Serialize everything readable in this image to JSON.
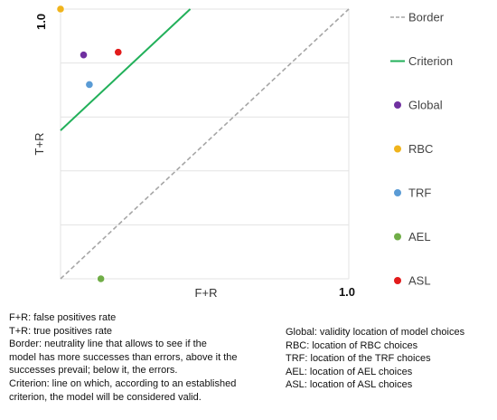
{
  "chart_data": {
    "type": "scatter",
    "xlabel": "F+R",
    "ylabel": "T+R",
    "xlim": [
      0,
      1
    ],
    "ylim": [
      0,
      1
    ],
    "x_tick_labels": [
      "1.0"
    ],
    "y_tick_labels": [
      "1.0"
    ],
    "grid": "horizontal",
    "legend_position": "right",
    "lines": [
      {
        "name": "Border",
        "style": "dashed",
        "color": "#a6a6a6",
        "points": [
          [
            0,
            0
          ],
          [
            1,
            1
          ]
        ]
      },
      {
        "name": "Criterion",
        "style": "solid",
        "color": "#22b05a",
        "points": [
          [
            0,
            0.55
          ],
          [
            0.45,
            1
          ]
        ]
      }
    ],
    "points": [
      {
        "name": "Global",
        "x": 0.08,
        "y": 0.83,
        "color": "#7030a0"
      },
      {
        "name": "RBC",
        "x": 0.0,
        "y": 1.0,
        "color": "#f0b41c"
      },
      {
        "name": "TRF",
        "x": 0.1,
        "y": 0.72,
        "color": "#5a9bd5"
      },
      {
        "name": "AEL",
        "x": 0.14,
        "y": 0.0,
        "color": "#70ad47"
      },
      {
        "name": "ASL",
        "x": 0.2,
        "y": 0.84,
        "color": "#e21b1b"
      }
    ],
    "legend": [
      "Border",
      "Criterion",
      "Global",
      "RBC",
      "TRF",
      "AEL",
      "ASL"
    ]
  },
  "notes_left": [
    "F+R: false positives rate",
    "T+R: true positives rate",
    "Border: neutrality line that allows to see if the",
    "model has more successes than errors, above it the",
    "successes  prevail; below it, the errors.",
    "Criterion: line on which, according to an established",
    "criterion, the model will be considered valid."
  ],
  "notes_right": [
    "Global: validity location of model choices",
    "RBC: location of RBC choices",
    "TRF: location of the TRF choices",
    "AEL: location of AEL choices",
    "ASL: location of ASL choices"
  ]
}
